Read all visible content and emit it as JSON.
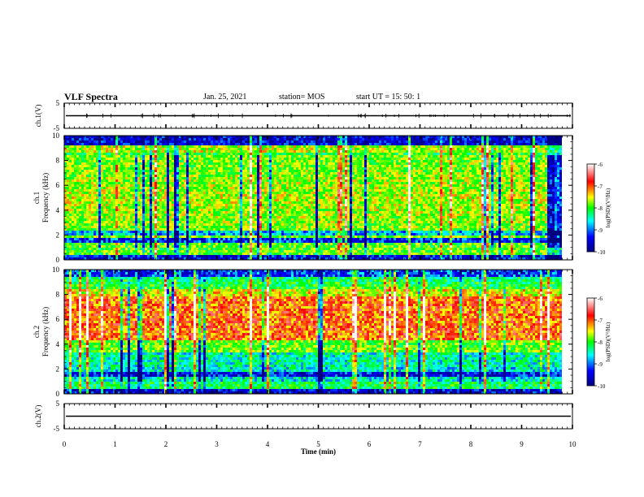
{
  "header": {
    "title": "VLF Spectra",
    "date": "Jan. 25, 2021",
    "station": "station= MOS",
    "start": "start  UT =   15: 50: 1"
  },
  "chart_data": [
    {
      "type": "line",
      "panel": "waveform-top",
      "ylabel": "ch.1(V)",
      "ylim": [
        -5,
        5
      ],
      "yticks": [
        "5",
        "-5"
      ],
      "trace_level": 0
    },
    {
      "type": "heatmap",
      "panel": "spectrogram-ch1",
      "ylabel": "ch.1\nFrequency (kHz)",
      "ylim": [
        0,
        10
      ],
      "yticks": [
        "0",
        "2",
        "4",
        "6",
        "8",
        "10"
      ],
      "xlim": [
        0,
        9.8
      ],
      "colorbar": {
        "label": "log(PSD)(V²/Hz)",
        "range": [
          -10,
          -6
        ],
        "ticks": [
          "-6",
          "-7",
          "-8",
          "-9",
          "-10"
        ],
        "colors": [
          "#00007f",
          "#0000ff",
          "#00ffff",
          "#00ff00",
          "#ffff00",
          "#ff0000",
          "#ffffff"
        ]
      }
    },
    {
      "type": "heatmap",
      "panel": "spectrogram-ch2",
      "ylabel": "ch.2\nFrequency (kHz)",
      "ylim": [
        0,
        10
      ],
      "yticks": [
        "0",
        "2",
        "4",
        "6",
        "8",
        "10"
      ],
      "xlim": [
        0,
        9.8
      ],
      "colorbar": {
        "label": "log(PSD)(V²/Hz)",
        "range": [
          -10,
          -6
        ],
        "ticks": [
          "-6",
          "-7",
          "-8",
          "-9",
          "-10"
        ],
        "colors": [
          "#00007f",
          "#0000ff",
          "#00ffff",
          "#00ff00",
          "#ffff00",
          "#ff0000",
          "#ffffff"
        ]
      }
    },
    {
      "type": "line",
      "panel": "waveform-bottom",
      "ylabel": "ch.2(V)",
      "ylim": [
        -5,
        5
      ],
      "yticks": [
        "5",
        "-5"
      ],
      "trace_level": 0
    }
  ],
  "xaxis": {
    "label": "Time  (min)",
    "ticks": [
      "0",
      "1",
      "2",
      "3",
      "4",
      "5",
      "6",
      "7",
      "8",
      "9",
      "10"
    ],
    "range": [
      0,
      10
    ]
  }
}
